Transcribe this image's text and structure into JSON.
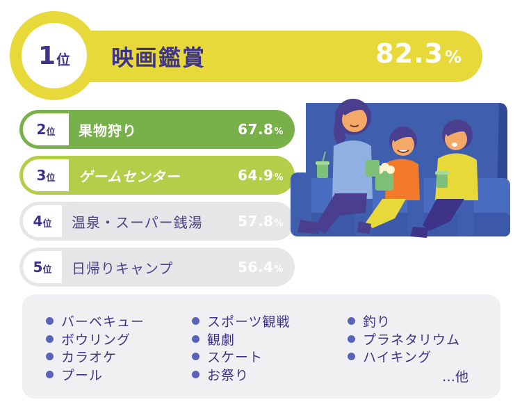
{
  "ranking": [
    {
      "rank": "1",
      "suffix": "位",
      "label": "映画鑑賞",
      "percent": "82.3",
      "unit": "%"
    },
    {
      "rank": "2",
      "suffix": "位",
      "label": "果物狩り",
      "percent": "67.8",
      "unit": "%"
    },
    {
      "rank": "3",
      "suffix": "位",
      "label": "ゲームセンター",
      "percent": "64.9",
      "unit": "%"
    },
    {
      "rank": "4",
      "suffix": "位",
      "label": "温泉・スーパー銭湯",
      "percent": "57.8",
      "unit": "%"
    },
    {
      "rank": "5",
      "suffix": "位",
      "label": "日帰りキャンプ",
      "percent": "56.4",
      "unit": "%"
    }
  ],
  "others": {
    "col1": [
      "バーベキュー",
      "ボウリング",
      "カラオケ",
      "プール"
    ],
    "col2": [
      "スポーツ観戦",
      "観劇",
      "スケート",
      "お祭り"
    ],
    "col3": [
      "釣り",
      "プラネタリウム",
      "ハイキング"
    ],
    "etc": "…他"
  },
  "colors": {
    "rank1": "#e8d93a",
    "rank2": "#78b04a",
    "rank3": "#b3cf4a",
    "rank4": "#e6e6e9",
    "rank5": "#e6e6e9",
    "text_accent": "#3d3388"
  },
  "illustration": "family-watching-movie-in-theater-seats"
}
